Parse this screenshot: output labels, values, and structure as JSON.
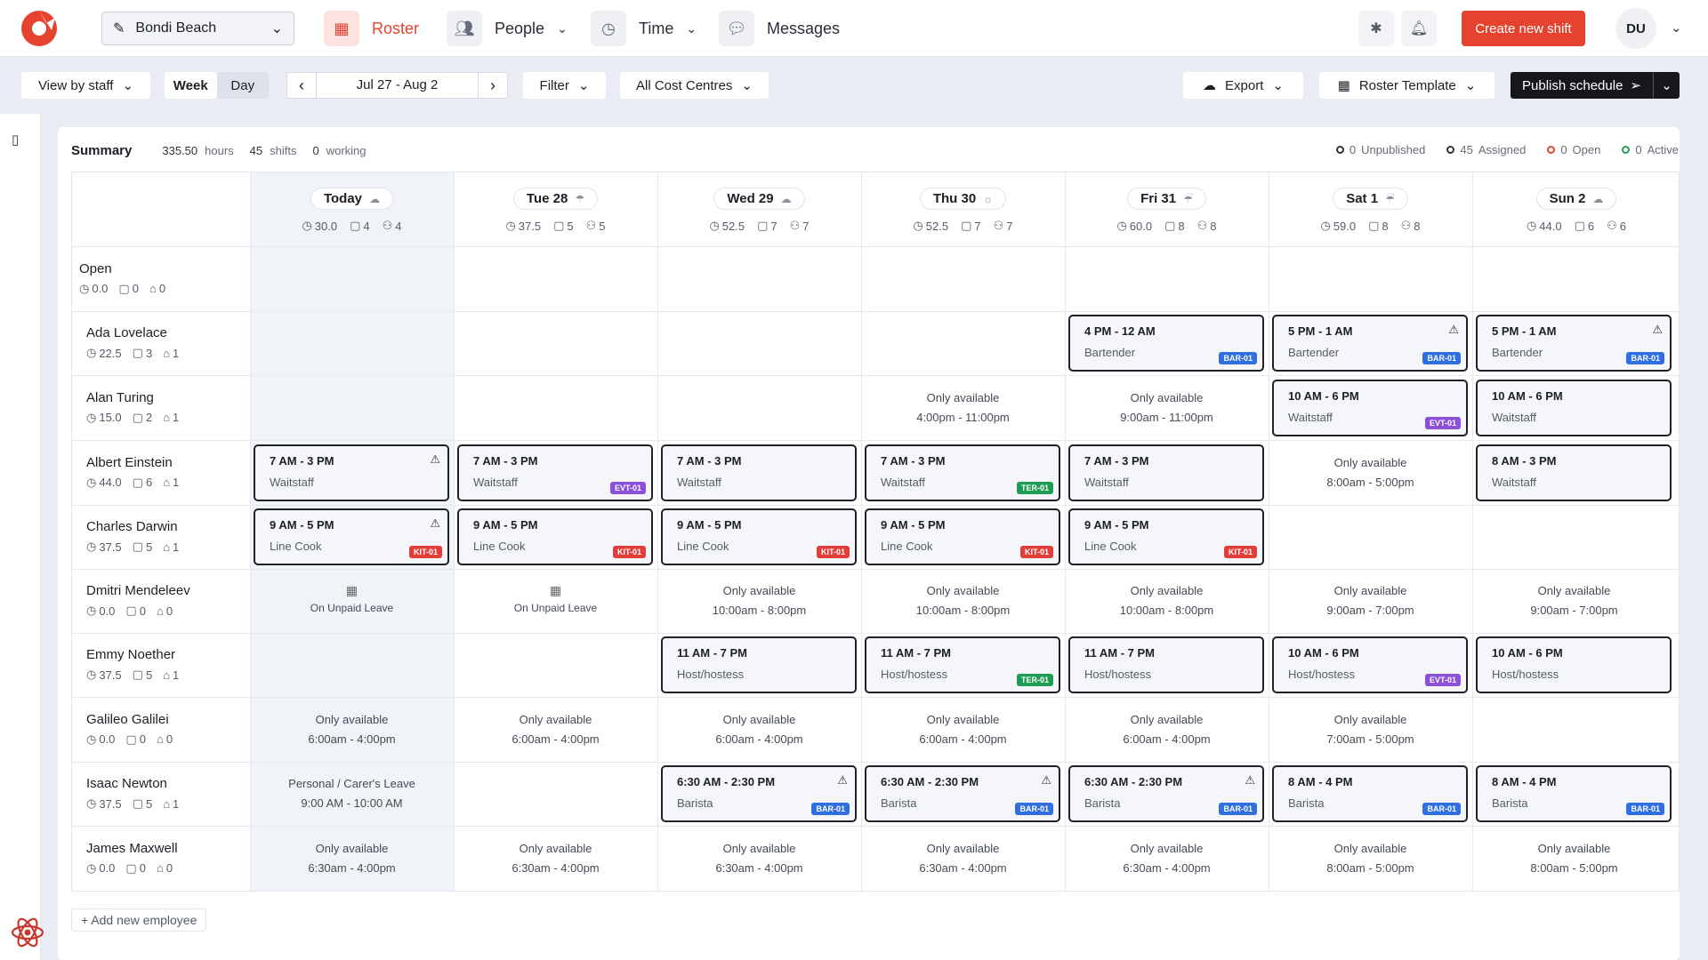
{
  "header": {
    "location": "Bondi Beach",
    "nav": [
      "Roster",
      "People",
      "Time",
      "Messages"
    ],
    "create_label": "Create new shift",
    "avatar": "DU"
  },
  "toolbar": {
    "view_by": "View by staff",
    "week": "Week",
    "day": "Day",
    "date_range": "Jul 27 - Aug 2",
    "filter": "Filter",
    "cost_centres": "All Cost Centres",
    "export": "Export",
    "template": "Roster Template",
    "publish": "Publish schedule"
  },
  "summary": {
    "title": "Summary",
    "hours": "335.50",
    "hours_label": "hours",
    "shifts": "45",
    "shifts_label": "shifts",
    "working": "0",
    "working_label": "working",
    "legend": [
      {
        "count": "0",
        "label": "Unpublished",
        "color": "#333333"
      },
      {
        "count": "45",
        "label": "Assigned",
        "color": "#333333"
      },
      {
        "count": "0",
        "label": "Open",
        "color": "#e5432f"
      },
      {
        "count": "0",
        "label": "Active",
        "color": "#1f9d55"
      }
    ]
  },
  "days": [
    {
      "label": "Today",
      "hours": "30.0",
      "shifts": "4",
      "people": "4",
      "weather": "☁"
    },
    {
      "label": "Tue 28",
      "hours": "37.5",
      "shifts": "5",
      "people": "5",
      "weather": "☂"
    },
    {
      "label": "Wed 29",
      "hours": "52.5",
      "shifts": "7",
      "people": "7",
      "weather": "☁"
    },
    {
      "label": "Thu 30",
      "hours": "52.5",
      "shifts": "7",
      "people": "7",
      "weather": "☼"
    },
    {
      "label": "Fri 31",
      "hours": "60.0",
      "shifts": "8",
      "people": "8",
      "weather": "☔"
    },
    {
      "label": "Sat 1",
      "hours": "59.0",
      "shifts": "8",
      "people": "8",
      "weather": "☔"
    },
    {
      "label": "Sun 2",
      "hours": "44.0",
      "shifts": "6",
      "people": "6",
      "weather": "☁"
    }
  ],
  "rows": [
    {
      "name": "Open",
      "hours": "0.0",
      "shifts": "0",
      "tags": "0",
      "cells": [
        null,
        null,
        null,
        null,
        null,
        null,
        null
      ]
    },
    {
      "name": "Ada Lovelace",
      "hours": "22.5",
      "shifts": "3",
      "tags": "1",
      "cells": [
        null,
        null,
        null,
        null,
        {
          "type": "shift",
          "time": "4 PM - 12 AM",
          "role": "Bartender",
          "tag": "BAR-01",
          "tagc": "bar"
        },
        {
          "type": "shift",
          "time": "5 PM - 1 AM",
          "role": "Bartender",
          "tag": "BAR-01",
          "tagc": "bar",
          "warn": true
        },
        {
          "type": "shift",
          "time": "5 PM - 1 AM",
          "role": "Bartender",
          "tag": "BAR-01",
          "tagc": "bar",
          "warn": true
        }
      ]
    },
    {
      "name": "Alan Turing",
      "hours": "15.0",
      "shifts": "2",
      "tags": "1",
      "cells": [
        null,
        null,
        null,
        {
          "type": "avail",
          "title": "Only available",
          "time": "4:00pm - 11:00pm"
        },
        {
          "type": "avail",
          "title": "Only available",
          "time": "9:00am - 11:00pm"
        },
        {
          "type": "shift",
          "time": "10 AM - 6 PM",
          "role": "Waitstaff",
          "tag": "EVT-01",
          "tagc": "evt"
        },
        {
          "type": "shift",
          "time": "10 AM - 6 PM",
          "role": "Waitstaff"
        }
      ]
    },
    {
      "name": "Albert Einstein",
      "hours": "44.0",
      "shifts": "6",
      "tags": "1",
      "cells": [
        {
          "type": "shift",
          "time": "7 AM - 3 PM",
          "role": "Waitstaff",
          "warn": true
        },
        {
          "type": "shift",
          "time": "7 AM - 3 PM",
          "role": "Waitstaff",
          "tag": "EVT-01",
          "tagc": "evt"
        },
        {
          "type": "shift",
          "time": "7 AM - 3 PM",
          "role": "Waitstaff"
        },
        {
          "type": "shift",
          "time": "7 AM - 3 PM",
          "role": "Waitstaff",
          "tag": "TER-01",
          "tagc": "ter"
        },
        {
          "type": "shift",
          "time": "7 AM - 3 PM",
          "role": "Waitstaff"
        },
        {
          "type": "avail",
          "title": "Only available",
          "time": "8:00am - 5:00pm"
        },
        {
          "type": "shift",
          "time": "8 AM - 3 PM",
          "role": "Waitstaff"
        }
      ]
    },
    {
      "name": "Charles Darwin",
      "hours": "37.5",
      "shifts": "5",
      "tags": "1",
      "cells": [
        {
          "type": "shift",
          "time": "9 AM - 5 PM",
          "role": "Line Cook",
          "tag": "KIT-01",
          "tagc": "kit",
          "warn": true
        },
        {
          "type": "shift",
          "time": "9 AM - 5 PM",
          "role": "Line Cook",
          "tag": "KIT-01",
          "tagc": "kit"
        },
        {
          "type": "shift",
          "time": "9 AM - 5 PM",
          "role": "Line Cook",
          "tag": "KIT-01",
          "tagc": "kit"
        },
        {
          "type": "shift",
          "time": "9 AM - 5 PM",
          "role": "Line Cook",
          "tag": "KIT-01",
          "tagc": "kit"
        },
        {
          "type": "shift",
          "time": "9 AM - 5 PM",
          "role": "Line Cook",
          "tag": "KIT-01",
          "tagc": "kit"
        },
        null,
        null
      ]
    },
    {
      "name": "Dmitri Mendeleev",
      "hours": "0.0",
      "shifts": "0",
      "tags": "0",
      "cells": [
        {
          "type": "leave",
          "title": "On Unpaid Leave"
        },
        {
          "type": "leave",
          "title": "On Unpaid Leave"
        },
        {
          "type": "avail",
          "title": "Only available",
          "time": "10:00am - 8:00pm"
        },
        {
          "type": "avail",
          "title": "Only available",
          "time": "10:00am - 8:00pm"
        },
        {
          "type": "avail",
          "title": "Only available",
          "time": "10:00am - 8:00pm"
        },
        {
          "type": "avail",
          "title": "Only available",
          "time": "9:00am - 7:00pm"
        },
        {
          "type": "avail",
          "title": "Only available",
          "time": "9:00am - 7:00pm"
        }
      ]
    },
    {
      "name": "Emmy Noether",
      "hours": "37.5",
      "shifts": "5",
      "tags": "1",
      "cells": [
        null,
        null,
        {
          "type": "shift",
          "time": "11 AM - 7 PM",
          "role": "Host/hostess"
        },
        {
          "type": "shift",
          "time": "11 AM - 7 PM",
          "role": "Host/hostess",
          "tag": "TER-01",
          "tagc": "ter"
        },
        {
          "type": "shift",
          "time": "11 AM - 7 PM",
          "role": "Host/hostess"
        },
        {
          "type": "shift",
          "time": "10 AM - 6 PM",
          "role": "Host/hostess",
          "tag": "EVT-01",
          "tagc": "evt"
        },
        {
          "type": "shift",
          "time": "10 AM - 6 PM",
          "role": "Host/hostess"
        }
      ]
    },
    {
      "name": "Galileo Galilei",
      "hours": "0.0",
      "shifts": "0",
      "tags": "0",
      "cells": [
        {
          "type": "avail",
          "title": "Only available",
          "time": "6:00am - 4:00pm"
        },
        {
          "type": "avail",
          "title": "Only available",
          "time": "6:00am - 4:00pm"
        },
        {
          "type": "avail",
          "title": "Only available",
          "time": "6:00am - 4:00pm"
        },
        {
          "type": "avail",
          "title": "Only available",
          "time": "6:00am - 4:00pm"
        },
        {
          "type": "avail",
          "title": "Only available",
          "time": "6:00am - 4:00pm"
        },
        {
          "type": "avail",
          "title": "Only available",
          "time": "7:00am - 5:00pm"
        },
        null
      ]
    },
    {
      "name": "Isaac Newton",
      "hours": "37.5",
      "shifts": "5",
      "tags": "1",
      "cells": [
        {
          "type": "avail",
          "title": "Personal / Carer's Leave",
          "time": "9:00 AM - 10:00 AM"
        },
        null,
        {
          "type": "shift",
          "time": "6:30 AM - 2:30 PM",
          "role": "Barista",
          "tag": "BAR-01",
          "tagc": "bar",
          "warn": true
        },
        {
          "type": "shift",
          "time": "6:30 AM - 2:30 PM",
          "role": "Barista",
          "tag": "BAR-01",
          "tagc": "bar",
          "warn": true
        },
        {
          "type": "shift",
          "time": "6:30 AM - 2:30 PM",
          "role": "Barista",
          "tag": "BAR-01",
          "tagc": "bar",
          "warn": true
        },
        {
          "type": "shift",
          "time": "8 AM - 4 PM",
          "role": "Barista",
          "tag": "BAR-01",
          "tagc": "bar"
        },
        {
          "type": "shift",
          "time": "8 AM - 4 PM",
          "role": "Barista",
          "tag": "BAR-01",
          "tagc": "bar"
        }
      ]
    },
    {
      "name": "James Maxwell",
      "hours": "0.0",
      "shifts": "0",
      "tags": "0",
      "cells": [
        {
          "type": "avail",
          "title": "Only available",
          "time": "6:30am - 4:00pm"
        },
        {
          "type": "avail",
          "title": "Only available",
          "time": "6:30am - 4:00pm"
        },
        {
          "type": "avail",
          "title": "Only available",
          "time": "6:30am - 4:00pm"
        },
        {
          "type": "avail",
          "title": "Only available",
          "time": "6:30am - 4:00pm"
        },
        {
          "type": "avail",
          "title": "Only available",
          "time": "6:30am - 4:00pm"
        },
        {
          "type": "avail",
          "title": "Only available",
          "time": "8:00am - 5:00pm"
        },
        {
          "type": "avail",
          "title": "Only available",
          "time": "8:00am - 5:00pm"
        }
      ]
    }
  ],
  "add_employee": "+ Add new employee"
}
